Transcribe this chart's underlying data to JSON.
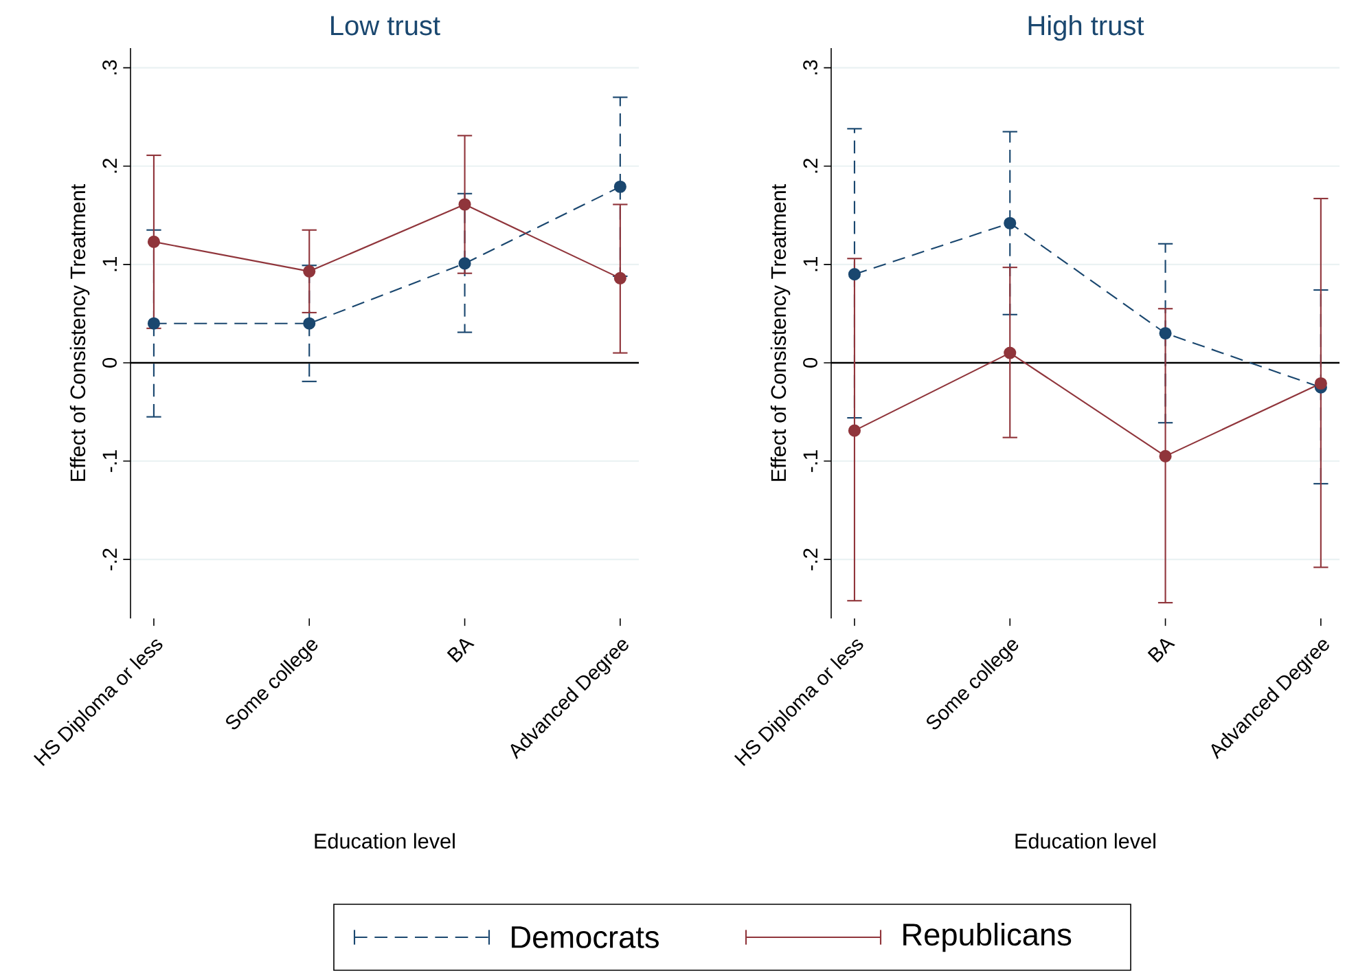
{
  "chart_data": [
    {
      "type": "line",
      "title": "Low trust",
      "xlabel": "Education level",
      "ylabel": "Effect of Consistency Treatment",
      "categories": [
        "HS Diploma or less",
        "Some college",
        "BA",
        "Advanced Degree"
      ],
      "ylim": [
        -0.26,
        0.32
      ],
      "yticks": [
        {
          "value": -0.2,
          "label": "-.2"
        },
        {
          "value": -0.1,
          "label": "-.1"
        },
        0,
        {
          "value": 0.1,
          "label": ".1"
        },
        {
          "value": 0.2,
          "label": ".2"
        },
        {
          "value": 0.3,
          "label": ".3"
        }
      ],
      "grid": "y",
      "marker": "circle",
      "legend": "bottom",
      "ref_lines": [
        {
          "axis": "y",
          "value": 0,
          "color": "#000000"
        }
      ],
      "series": [
        {
          "name": "Democrats",
          "color": "#1a476f",
          "line_style": "dashed",
          "values": [
            0.04,
            0.04,
            0.101,
            0.179
          ],
          "errors": [
            [
              -0.055,
              0.135
            ],
            [
              -0.019,
              0.099
            ],
            [
              0.031,
              0.172
            ],
            [
              0.088,
              0.27
            ]
          ]
        },
        {
          "name": "Republicans",
          "color": "#90353b",
          "line_style": "solid",
          "values": [
            0.123,
            0.093,
            0.161,
            0.086
          ],
          "errors": [
            [
              0.035,
              0.211
            ],
            [
              0.051,
              0.135
            ],
            [
              0.091,
              0.231
            ],
            [
              0.01,
              0.161
            ]
          ]
        }
      ]
    },
    {
      "type": "line",
      "title": "High trust",
      "xlabel": "Education level",
      "ylabel": "Effect of Consistency Treatment",
      "categories": [
        "HS Diploma or less",
        "Some college",
        "BA",
        "Advanced Degree"
      ],
      "ylim": [
        -0.26,
        0.32
      ],
      "yticks": [
        {
          "value": -0.2,
          "label": "-.2"
        },
        {
          "value": -0.1,
          "label": "-.1"
        },
        0,
        {
          "value": 0.1,
          "label": ".1"
        },
        {
          "value": 0.2,
          "label": ".2"
        },
        {
          "value": 0.3,
          "label": ".3"
        }
      ],
      "grid": "y",
      "marker": "circle",
      "legend": "bottom",
      "ref_lines": [
        {
          "axis": "y",
          "value": 0,
          "color": "#000000"
        }
      ],
      "series": [
        {
          "color": "#1a476f",
          "line_style": "dashed",
          "values": [
            0.09,
            0.142,
            0.03,
            -0.025
          ],
          "errors": [
            [
              -0.056,
              0.238
            ],
            [
              0.049,
              0.235
            ],
            [
              -0.061,
              0.121
            ],
            [
              -0.123,
              0.074
            ]
          ]
        },
        {
          "color": "#90353b",
          "line_style": "solid",
          "values": [
            -0.069,
            0.01,
            -0.095,
            -0.021
          ],
          "errors": [
            [
              -0.242,
              0.106
            ],
            [
              -0.076,
              0.097
            ],
            [
              -0.244,
              0.055
            ],
            [
              -0.208,
              0.167
            ]
          ]
        }
      ]
    }
  ]
}
